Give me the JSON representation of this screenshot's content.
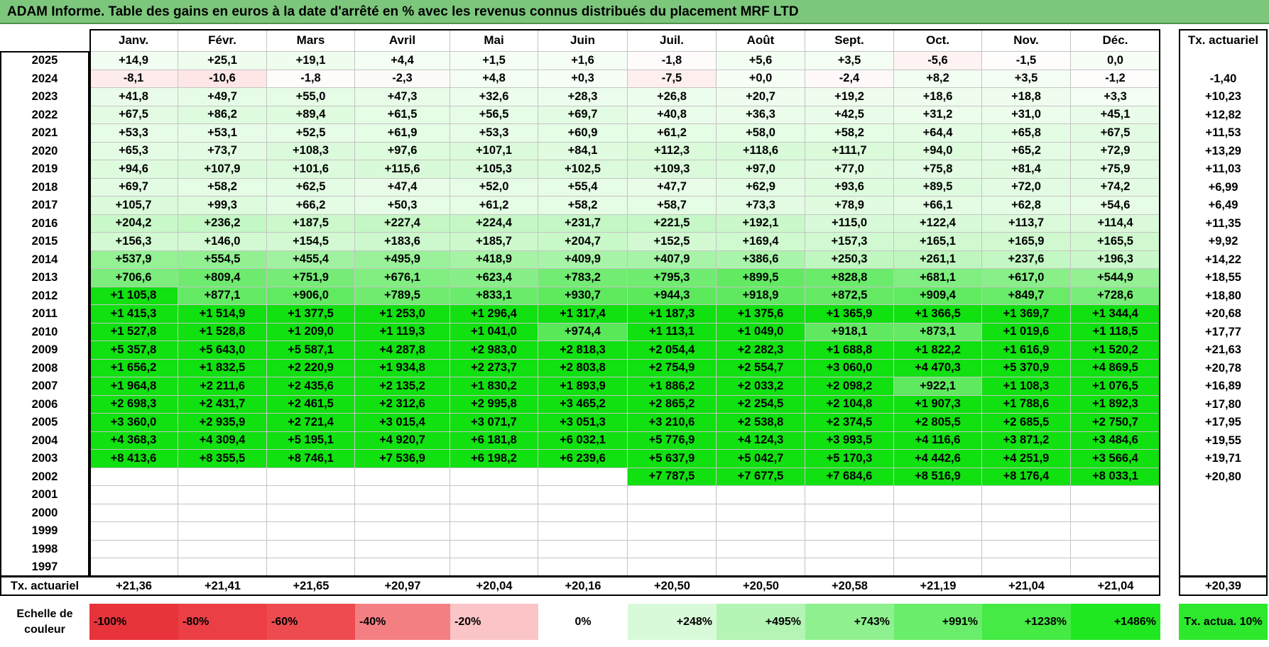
{
  "title": "ADAM Informe. Table des gains en euros à la date d'arrêté en % avec les revenus connus distribués du placement MRF LTD",
  "months": [
    "Janv.",
    "Févr.",
    "Mars",
    "Avril",
    "Mai",
    "Juin",
    "Juil.",
    "Août",
    "Sept.",
    "Oct.",
    "Nov.",
    "Déc."
  ],
  "rate_header": "Tx. actuariel",
  "years": [
    "2025",
    "2024",
    "2023",
    "2022",
    "2021",
    "2020",
    "2019",
    "2018",
    "2017",
    "2016",
    "2015",
    "2014",
    "2013",
    "2012",
    "2011",
    "2010",
    "2009",
    "2008",
    "2007",
    "2006",
    "2005",
    "2004",
    "2003",
    "2002",
    "2001",
    "2000",
    "1999",
    "1998",
    "1997"
  ],
  "table": [
    [
      "+14,9",
      "+25,1",
      "+19,1",
      "+4,4",
      "+1,5",
      "+1,6",
      "-1,8",
      "+5,6",
      "+3,5",
      "-5,6",
      "-1,5",
      "0,0"
    ],
    [
      "-8,1",
      "-10,6",
      "-1,8",
      "-2,3",
      "+4,8",
      "+0,3",
      "-7,5",
      "+0,0",
      "-2,4",
      "+8,2",
      "+3,5",
      "-1,2"
    ],
    [
      "+41,8",
      "+49,7",
      "+55,0",
      "+47,3",
      "+32,6",
      "+28,3",
      "+26,8",
      "+20,7",
      "+19,2",
      "+18,6",
      "+18,8",
      "+3,3"
    ],
    [
      "+67,5",
      "+86,2",
      "+89,4",
      "+61,5",
      "+56,5",
      "+69,7",
      "+40,8",
      "+36,3",
      "+42,5",
      "+31,2",
      "+31,0",
      "+45,1"
    ],
    [
      "+53,3",
      "+53,1",
      "+52,5",
      "+61,9",
      "+53,3",
      "+60,9",
      "+61,2",
      "+58,0",
      "+58,2",
      "+64,4",
      "+65,8",
      "+67,5"
    ],
    [
      "+65,3",
      "+73,7",
      "+108,3",
      "+97,6",
      "+107,1",
      "+84,1",
      "+112,3",
      "+118,6",
      "+111,7",
      "+94,0",
      "+65,2",
      "+72,9"
    ],
    [
      "+94,6",
      "+107,9",
      "+101,6",
      "+115,6",
      "+105,3",
      "+102,5",
      "+109,3",
      "+97,0",
      "+77,0",
      "+75,8",
      "+81,4",
      "+75,9"
    ],
    [
      "+69,7",
      "+58,2",
      "+62,5",
      "+47,4",
      "+52,0",
      "+55,4",
      "+47,7",
      "+62,9",
      "+93,6",
      "+89,5",
      "+72,0",
      "+74,2"
    ],
    [
      "+105,7",
      "+99,3",
      "+66,2",
      "+50,3",
      "+61,2",
      "+58,2",
      "+58,7",
      "+73,3",
      "+78,9",
      "+66,1",
      "+62,8",
      "+54,6"
    ],
    [
      "+204,2",
      "+236,2",
      "+187,5",
      "+227,4",
      "+224,4",
      "+231,7",
      "+221,5",
      "+192,1",
      "+115,0",
      "+122,4",
      "+113,7",
      "+114,4"
    ],
    [
      "+156,3",
      "+146,0",
      "+154,5",
      "+183,6",
      "+185,7",
      "+204,7",
      "+152,5",
      "+169,4",
      "+157,3",
      "+165,1",
      "+165,9",
      "+165,5"
    ],
    [
      "+537,9",
      "+554,5",
      "+455,4",
      "+495,9",
      "+418,9",
      "+409,9",
      "+407,9",
      "+386,6",
      "+250,3",
      "+261,1",
      "+237,6",
      "+196,3"
    ],
    [
      "+706,6",
      "+809,4",
      "+751,9",
      "+676,1",
      "+623,4",
      "+783,2",
      "+795,3",
      "+899,5",
      "+828,8",
      "+681,1",
      "+617,0",
      "+544,9"
    ],
    [
      "+1 105,8",
      "+877,1",
      "+906,0",
      "+789,5",
      "+833,1",
      "+930,7",
      "+944,3",
      "+918,9",
      "+872,5",
      "+909,4",
      "+849,7",
      "+728,6"
    ],
    [
      "+1 415,3",
      "+1 514,9",
      "+1 377,5",
      "+1 253,0",
      "+1 296,4",
      "+1 317,4",
      "+1 187,3",
      "+1 375,6",
      "+1 365,9",
      "+1 366,5",
      "+1 369,7",
      "+1 344,4"
    ],
    [
      "+1 527,8",
      "+1 528,8",
      "+1 209,0",
      "+1 119,3",
      "+1 041,0",
      "+974,4",
      "+1 113,1",
      "+1 049,0",
      "+918,1",
      "+873,1",
      "+1 019,6",
      "+1 118,5"
    ],
    [
      "+5 357,8",
      "+5 643,0",
      "+5 587,1",
      "+4 287,8",
      "+2 983,0",
      "+2 818,3",
      "+2 054,4",
      "+2 282,3",
      "+1 688,8",
      "+1 822,2",
      "+1 616,9",
      "+1 520,2"
    ],
    [
      "+1 656,2",
      "+1 832,5",
      "+2 220,9",
      "+1 934,8",
      "+2 273,7",
      "+2 803,8",
      "+2 754,9",
      "+2 554,7",
      "+3 060,0",
      "+4 470,3",
      "+5 370,9",
      "+4 869,5"
    ],
    [
      "+1 964,8",
      "+2 211,6",
      "+2 435,6",
      "+2 135,2",
      "+1 830,2",
      "+1 893,9",
      "+1 886,2",
      "+2 033,2",
      "+2 098,2",
      "+922,1",
      "+1 108,3",
      "+1 076,5"
    ],
    [
      "+2 698,3",
      "+2 431,7",
      "+2 461,5",
      "+2 312,6",
      "+2 995,8",
      "+3 465,2",
      "+2 865,2",
      "+2 254,5",
      "+2 104,8",
      "+1 907,3",
      "+1 788,6",
      "+1 892,3"
    ],
    [
      "+3 360,0",
      "+2 935,9",
      "+2 721,4",
      "+3 015,4",
      "+3 071,7",
      "+3 051,3",
      "+3 210,6",
      "+2 538,8",
      "+2 374,5",
      "+2 805,5",
      "+2 685,5",
      "+2 750,7"
    ],
    [
      "+4 368,3",
      "+4 309,4",
      "+5 195,1",
      "+4 920,7",
      "+6 181,8",
      "+6 032,1",
      "+5 776,9",
      "+4 124,3",
      "+3 993,5",
      "+4 116,6",
      "+3 871,2",
      "+3 484,6"
    ],
    [
      "+8 413,6",
      "+8 355,5",
      "+8 746,1",
      "+7 536,9",
      "+6 198,2",
      "+6 239,6",
      "+5 637,9",
      "+5 042,7",
      "+5 170,3",
      "+4 442,6",
      "+4 251,9",
      "+3 566,4"
    ],
    [
      "",
      "",
      "",
      "",
      "",
      "",
      "+7 787,5",
      "+7 677,5",
      "+7 684,6",
      "+8 516,9",
      "+8 176,4",
      "+8 033,1"
    ],
    [
      "",
      "",
      "",
      "",
      "",
      "",
      "",
      "",
      "",
      "",
      "",
      ""
    ],
    [
      "",
      "",
      "",
      "",
      "",
      "",
      "",
      "",
      "",
      "",
      "",
      ""
    ],
    [
      "",
      "",
      "",
      "",
      "",
      "",
      "",
      "",
      "",
      "",
      "",
      ""
    ],
    [
      "",
      "",
      "",
      "",
      "",
      "",
      "",
      "",
      "",
      "",
      "",
      ""
    ],
    [
      "",
      "",
      "",
      "",
      "",
      "",
      "",
      "",
      "",
      "",
      "",
      ""
    ]
  ],
  "year_rates": [
    "",
    "-1,40",
    "+10,23",
    "+12,82",
    "+11,53",
    "+13,29",
    "+11,03",
    "+6,99",
    "+6,49",
    "+11,35",
    "+9,92",
    "+14,22",
    "+18,55",
    "+18,80",
    "+20,68",
    "+17,77",
    "+21,63",
    "+20,78",
    "+16,89",
    "+17,80",
    "+17,95",
    "+19,55",
    "+19,71",
    "+20,80",
    "",
    "",
    "",
    "",
    ""
  ],
  "footer_label": "Tx. actuariel",
  "month_rates": [
    "+21,36",
    "+21,41",
    "+21,65",
    "+20,97",
    "+20,04",
    "+20,16",
    "+20,50",
    "+20,50",
    "+20,58",
    "+21,19",
    "+21,04",
    "+21,04"
  ],
  "footer_total": "+20,39",
  "legend_label": "Echelle de couleur",
  "legend_steps": [
    {
      "label": "-100%",
      "color": "#e8333a"
    },
    {
      "label": "-80%",
      "color": "#eb3f45"
    },
    {
      "label": "-60%",
      "color": "#ee4b51"
    },
    {
      "label": "-40%",
      "color": "#f47f83"
    },
    {
      "label": "-20%",
      "color": "#fbc4c6"
    },
    {
      "label": "0%",
      "color": "#ffffff"
    },
    {
      "label": "+248%",
      "color": "#d9fad9"
    },
    {
      "label": "+495%",
      "color": "#b4f4b4"
    },
    {
      "label": "+743%",
      "color": "#8ff08f"
    },
    {
      "label": "+991%",
      "color": "#6aed6a"
    },
    {
      "label": "+1238%",
      "color": "#45ea45"
    },
    {
      "label": "+1486%",
      "color": "#20e820"
    }
  ],
  "legend_target": "Tx. actua. 10%",
  "colors": {
    "title_bg": "#7dc77d",
    "grid": "#c4c4c4",
    "target": "#2ee82e"
  }
}
